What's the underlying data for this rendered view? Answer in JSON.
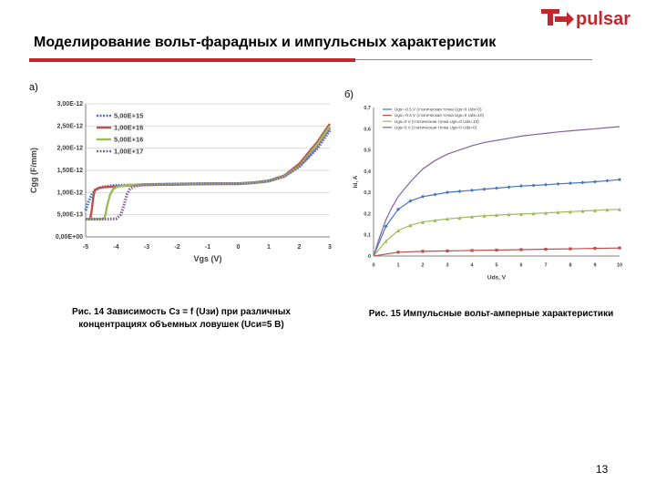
{
  "header": {
    "title": "Моделирование вольт-фарадных и импульсных характеристик",
    "logo_text": "pulsar",
    "brand_color": "#c0282e"
  },
  "panels": {
    "a": {
      "label": "а)",
      "caption_line1": "Рис. 14 Зависимость Cз = f (Uзи) при различных",
      "caption_line2": "концентрациях объемных ловушек (Uси=5 В)"
    },
    "b": {
      "label": "б)",
      "caption": "Рис. 15 Импульсные вольт-амперные характеристики"
    }
  },
  "footer": {
    "page_number": "13"
  },
  "chart_data": [
    {
      "type": "line",
      "xlabel": "Vgs (V)",
      "ylabel": "Cgg (F/mm)",
      "xlim": [
        -5,
        3
      ],
      "ylim": [
        0,
        3e-12
      ],
      "xticks": [
        "-5",
        "-4",
        "-3",
        "-2",
        "-1",
        "0",
        "1",
        "2",
        "3"
      ],
      "yticks": [
        "0,00E+00",
        "5,00E-13",
        "1,00E-12",
        "1,50E-12",
        "2,00E-12",
        "2,50E-12",
        "3,00E-12"
      ],
      "grid": true,
      "legend_position": "top-left",
      "series": [
        {
          "name": "5,00E+15",
          "color": "#4472c4",
          "dash": "dotted",
          "x": [
            -5,
            -4.9,
            -4.8,
            -4.7,
            -4.5,
            -4.2,
            -4,
            -3.5,
            -3,
            -2,
            -1,
            0,
            0.5,
            1,
            1.5,
            2,
            2.3,
            2.6,
            2.8,
            3
          ],
          "y": [
            6e-13,
            8e-13,
            9.5e-13,
            1.05e-12,
            1.12e-12,
            1.15e-12,
            1.16e-12,
            1.17e-12,
            1.18e-12,
            1.19e-12,
            1.2e-12,
            1.2e-12,
            1.22e-12,
            1.26e-12,
            1.37e-12,
            1.6e-12,
            1.8e-12,
            2.05e-12,
            2.25e-12,
            2.45e-12
          ]
        },
        {
          "name": "1,00E+16",
          "color": "#c0504d",
          "dash": "solid",
          "x": [
            -5,
            -4.85,
            -4.8,
            -4.75,
            -4.7,
            -4.6,
            -4.4,
            -4.2,
            -4,
            -3.5,
            -3,
            -2,
            -1,
            0,
            0.5,
            1,
            1.5,
            2,
            2.3,
            2.6,
            2.8,
            3
          ],
          "y": [
            4e-13,
            4e-13,
            6e-13,
            9e-13,
            1.05e-12,
            1.1e-12,
            1.12e-12,
            1.13e-12,
            1.14e-12,
            1.16e-12,
            1.17e-12,
            1.18e-12,
            1.19e-12,
            1.2e-12,
            1.22e-12,
            1.27e-12,
            1.38e-12,
            1.65e-12,
            1.9e-12,
            2.15e-12,
            2.35e-12,
            2.55e-12
          ]
        },
        {
          "name": "5,00E+16",
          "color": "#9bbb59",
          "dash": "solid",
          "x": [
            -5,
            -4.6,
            -4.4,
            -4.35,
            -4.3,
            -4.2,
            -4.1,
            -4,
            -3.8,
            -3.5,
            -3,
            -2,
            -1,
            0,
            0.5,
            1,
            1.5,
            2,
            2.3,
            2.6,
            2.8,
            3
          ],
          "y": [
            4e-13,
            4e-13,
            4.1e-13,
            5e-13,
            7e-13,
            9.5e-13,
            1.08e-12,
            1.12e-12,
            1.15e-12,
            1.17e-12,
            1.18e-12,
            1.19e-12,
            1.2e-12,
            1.2e-12,
            1.22e-12,
            1.26e-12,
            1.37e-12,
            1.6e-12,
            1.85e-12,
            2.1e-12,
            2.3e-12,
            2.5e-12
          ]
        },
        {
          "name": "1,00E+17",
          "color": "#8064a2",
          "dash": "dotted",
          "x": [
            -5,
            -4.2,
            -4.0,
            -3.85,
            -3.75,
            -3.65,
            -3.55,
            -3.4,
            -3.2,
            -3,
            -2,
            -1,
            0,
            0.5,
            1,
            1.5,
            2,
            2.3,
            2.6,
            2.8,
            3
          ],
          "y": [
            4e-13,
            4e-13,
            4.1e-13,
            5e-13,
            7e-13,
            9.5e-13,
            1.08e-12,
            1.14e-12,
            1.17e-12,
            1.18e-12,
            1.19e-12,
            1.2e-12,
            1.2e-12,
            1.22e-12,
            1.26e-12,
            1.36e-12,
            1.58e-12,
            1.8e-12,
            2e-12,
            2.2e-12,
            2.4e-12
          ]
        }
      ]
    },
    {
      "type": "line",
      "xlabel": "Uds, V",
      "ylabel": "Id, A",
      "xlim": [
        0,
        10
      ],
      "ylim": [
        0,
        0.7
      ],
      "xticks": [
        "0",
        "1",
        "2",
        "3",
        "4",
        "5",
        "6",
        "7",
        "8",
        "9",
        "10"
      ],
      "yticks": [
        "0",
        "0,1",
        "0,2",
        "0,3",
        "0,4",
        "0,5",
        "0,6",
        "0,7"
      ],
      "grid": false,
      "legend_position": "top-left",
      "series": [
        {
          "name": "Ugs=-0.5 V (статическая точка Ugs=0 Uds=0)",
          "color": "#4472c4",
          "marker": "diamond",
          "x": [
            0,
            0.5,
            1,
            1.5,
            2,
            2.5,
            3,
            3.5,
            4,
            4.5,
            5,
            5.5,
            6,
            6.5,
            7,
            7.5,
            8,
            8.5,
            9,
            9.5,
            10
          ],
          "y": [
            0,
            0.14,
            0.22,
            0.26,
            0.28,
            0.29,
            0.3,
            0.305,
            0.31,
            0.315,
            0.32,
            0.325,
            0.33,
            0.333,
            0.336,
            0.34,
            0.343,
            0.346,
            0.35,
            0.355,
            0.36
          ]
        },
        {
          "name": "Ugs=-0.5 V (статическая точка Ugs=0 Uds=10)",
          "color": "#c0504d",
          "marker": "square",
          "x": [
            0,
            1,
            2,
            3,
            4,
            5,
            6,
            7,
            8,
            9,
            10
          ],
          "y": [
            0,
            0.018,
            0.022,
            0.024,
            0.026,
            0.028,
            0.03,
            0.032,
            0.034,
            0.036,
            0.038
          ]
        },
        {
          "name": "Ugs=0 V (статическая точка Ugs=0 Uds=10)",
          "color": "#9bbb59",
          "marker": "triangle",
          "x": [
            0,
            0.5,
            1,
            1.5,
            2,
            2.5,
            3,
            3.5,
            4,
            4.5,
            5,
            5.5,
            6,
            6.5,
            7,
            7.5,
            8,
            8.5,
            9,
            9.5,
            10
          ],
          "y": [
            0,
            0.07,
            0.12,
            0.145,
            0.16,
            0.168,
            0.175,
            0.18,
            0.185,
            0.19,
            0.193,
            0.196,
            0.198,
            0.2,
            0.203,
            0.206,
            0.209,
            0.212,
            0.215,
            0.218,
            0.22
          ]
        },
        {
          "name": "Ugs=0 V (статическая точка Ugs=0 Uds=0)",
          "color": "#8064a2",
          "marker": "none",
          "x": [
            0,
            0.25,
            0.5,
            0.75,
            1,
            1.5,
            2,
            2.5,
            3,
            3.5,
            4,
            4.5,
            5,
            5.5,
            6,
            6.5,
            7,
            7.5,
            8,
            8.5,
            9,
            9.5,
            10
          ],
          "y": [
            0,
            0.09,
            0.17,
            0.23,
            0.28,
            0.35,
            0.41,
            0.45,
            0.48,
            0.5,
            0.52,
            0.535,
            0.545,
            0.555,
            0.565,
            0.572,
            0.578,
            0.585,
            0.59,
            0.595,
            0.6,
            0.605,
            0.61
          ]
        }
      ]
    }
  ]
}
